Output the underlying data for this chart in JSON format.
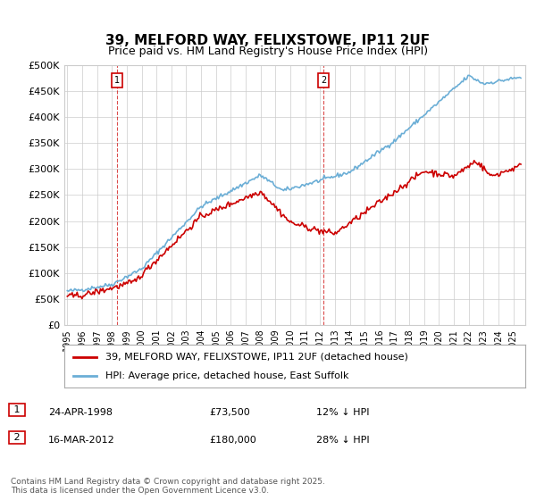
{
  "title": "39, MELFORD WAY, FELIXSTOWE, IP11 2UF",
  "subtitle": "Price paid vs. HM Land Registry's House Price Index (HPI)",
  "ylabel": "",
  "ylim": [
    0,
    500000
  ],
  "yticks": [
    0,
    50000,
    100000,
    150000,
    200000,
    250000,
    300000,
    350000,
    400000,
    450000,
    500000
  ],
  "ytick_labels": [
    "£0",
    "£50K",
    "£100K",
    "£150K",
    "£200K",
    "£250K",
    "£300K",
    "£350K",
    "£400K",
    "£450K",
    "£500K"
  ],
  "hpi_color": "#6baed6",
  "price_color": "#cc0000",
  "marker1_date_idx": 3.4,
  "marker2_date_idx": 17.2,
  "sale1_label": "1",
  "sale2_label": "2",
  "sale1_date": "24-APR-1998",
  "sale1_price": "£73,500",
  "sale1_hpi": "12% ↓ HPI",
  "sale2_date": "16-MAR-2012",
  "sale2_price": "£180,000",
  "sale2_hpi": "28% ↓ HPI",
  "legend_line1": "39, MELFORD WAY, FELIXSTOWE, IP11 2UF (detached house)",
  "legend_line2": "HPI: Average price, detached house, East Suffolk",
  "footer": "Contains HM Land Registry data © Crown copyright and database right 2025.\nThis data is licensed under the Open Government Licence v3.0.",
  "background_color": "#ffffff",
  "grid_color": "#cccccc",
  "x_start_year": 1995,
  "x_end_year": 2025
}
